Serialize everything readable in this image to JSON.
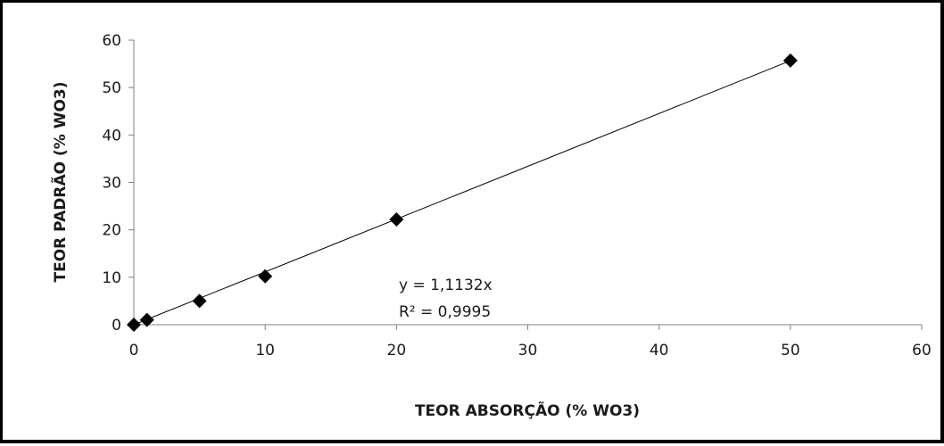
{
  "chart_data": {
    "type": "scatter",
    "title": "",
    "xlabel": "TEOR ABSORÇÃO (% WO3)",
    "ylabel": "TEOR PADRÃO (% WO3)",
    "xlim": [
      0,
      60
    ],
    "ylim": [
      0,
      60
    ],
    "x_ticks": [
      "0",
      "10",
      "20",
      "30",
      "40",
      "50",
      "60"
    ],
    "y_ticks": [
      "0",
      "10",
      "20",
      "30",
      "40",
      "50",
      "60"
    ],
    "grid": false,
    "legend": "none",
    "marker": "diamond",
    "marker_color": "#000000",
    "series": [
      {
        "x": [
          0,
          1,
          5,
          10,
          20,
          50
        ],
        "y": [
          0,
          1,
          5,
          10.2,
          22.2,
          55.7
        ]
      }
    ],
    "trendline": {
      "type": "linear",
      "slope": 1.1132,
      "intercept": 0,
      "color": "#000000"
    },
    "annotations": [
      "y = 1,1132x",
      "R² = 0,9995"
    ]
  }
}
